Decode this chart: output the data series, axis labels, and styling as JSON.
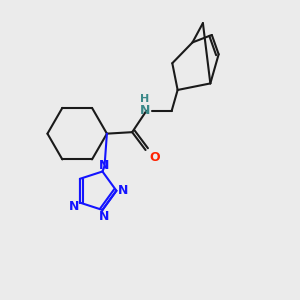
{
  "bg_color": "#ebebeb",
  "bond_color": "#1a1a1a",
  "N_color": "#1414ff",
  "O_color": "#ff2200",
  "NH_color": "#3a8888",
  "lw": 1.5,
  "figsize": [
    3.0,
    3.0
  ],
  "dpi": 100,
  "xlim": [
    0,
    10
  ],
  "ylim": [
    0,
    10
  ]
}
